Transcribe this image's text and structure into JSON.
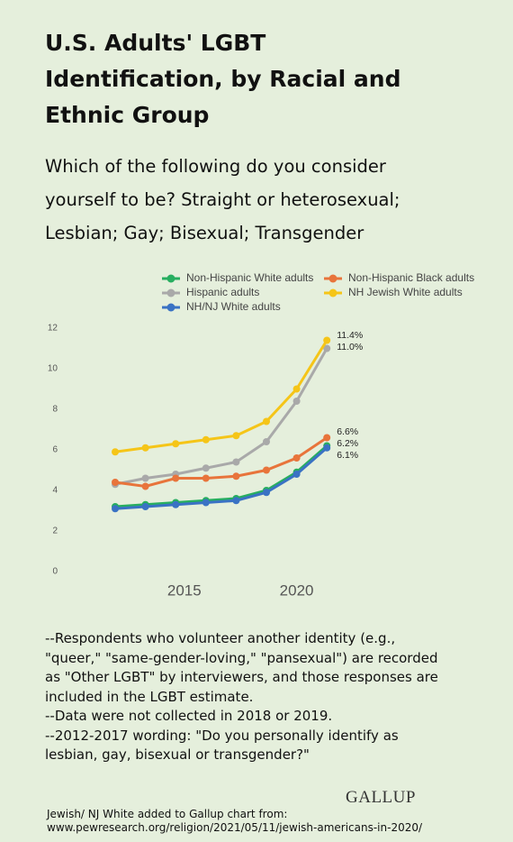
{
  "chart_data": {
    "type": "line",
    "title": "U.S. Adults' LGBT Identification, by Racial and Ethnic Group",
    "subtitle": "Which of the following do you consider yourself to be? Straight or heterosexual; Lesbian; Gay; Bisexual; Transgender",
    "categories": [
      null,
      null,
      null,
      "2015",
      null,
      null,
      "2020",
      null
    ],
    "series": [
      {
        "name": "Non-Hispanic White adults",
        "color": "#27ae60",
        "values": [
          3.2,
          3.3,
          3.4,
          3.5,
          3.6,
          4.0,
          4.9,
          6.2
        ],
        "value_labels": [
          null,
          null,
          null,
          null,
          null,
          null,
          null,
          "6.2%"
        ]
      },
      {
        "name": "Non-Hispanic Black adults",
        "color": "#e8743b",
        "values": [
          4.4,
          4.2,
          4.6,
          4.6,
          4.7,
          5.0,
          5.6,
          6.6
        ],
        "value_labels": [
          null,
          null,
          null,
          null,
          null,
          null,
          null,
          "6.6%"
        ]
      },
      {
        "name": "Hispanic adults",
        "color": "#a9a9a9",
        "values": [
          4.3,
          4.6,
          4.8,
          5.1,
          5.4,
          6.4,
          8.4,
          11.0
        ],
        "value_labels": [
          null,
          null,
          null,
          null,
          null,
          null,
          null,
          "11.0%"
        ]
      },
      {
        "name": "NH Jewish White adults",
        "color": "#f5c518",
        "values": [
          5.9,
          6.1,
          6.3,
          6.5,
          6.7,
          7.4,
          9.0,
          11.4
        ],
        "value_labels": [
          null,
          null,
          null,
          null,
          null,
          null,
          null,
          "11.4%"
        ]
      },
      {
        "name": "NH/NJ White adults",
        "color": "#3a72c4",
        "values": [
          3.1,
          3.2,
          3.3,
          3.4,
          3.5,
          3.9,
          4.8,
          6.1
        ],
        "value_labels": [
          null,
          null,
          null,
          null,
          null,
          null,
          null,
          "6.1%"
        ]
      }
    ],
    "ylim": [
      0,
      12
    ],
    "yticks": [
      0,
      2,
      4,
      6,
      8,
      10,
      12
    ],
    "notes": [
      "--Respondents who volunteer another identity (e.g., \"queer,\" \"same-gender-loving,\" \"pansexual\") are recorded as \"Other LGBT\" by interviewers, and those responses are included in the LGBT estimate.",
      "--Data were not collected in 2018 or 2019.",
      "--2012-2017 wording: \"Do you personally identify as lesbian, gay, bisexual or transgender?\""
    ],
    "logo": "GALLUP",
    "source": [
      "Jewish/ NJ White added to Gallup chart from:",
      "www.pewresearch.org/religion/2021/05/11/jewish-americans-in-2020/"
    ]
  }
}
